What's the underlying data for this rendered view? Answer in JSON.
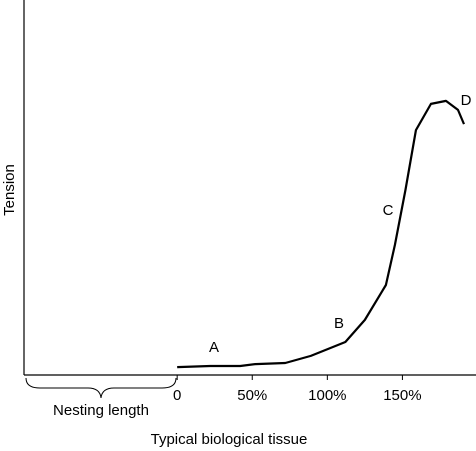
{
  "chart_data": {
    "type": "line",
    "x_label": "Typical biological tissue",
    "y_label": "Tension",
    "x": [
      0,
      22,
      42,
      52,
      72,
      89,
      112,
      125,
      139,
      145,
      152,
      159,
      169,
      179,
      187,
      191
    ],
    "series": [
      {
        "color": "#000000",
        "values": [
          2.1,
          2.4,
          2.4,
          2.9,
          3.2,
          5.1,
          8.8,
          14.7,
          24,
          34.7,
          49.3,
          65.3,
          72.3,
          73.1,
          70.7,
          66.9
        ]
      }
    ],
    "xlim": [
      -102,
      199
    ],
    "ylim": [
      0,
      100
    ],
    "xticks": [
      0,
      {
        "value": 50,
        "label": "50%"
      },
      {
        "value": 100,
        "label": "100%"
      },
      {
        "value": 150,
        "label": "150%"
      }
    ],
    "annotations": [
      "A",
      "B",
      "C",
      "D"
    ],
    "bracket_label": "Nesting length"
  }
}
